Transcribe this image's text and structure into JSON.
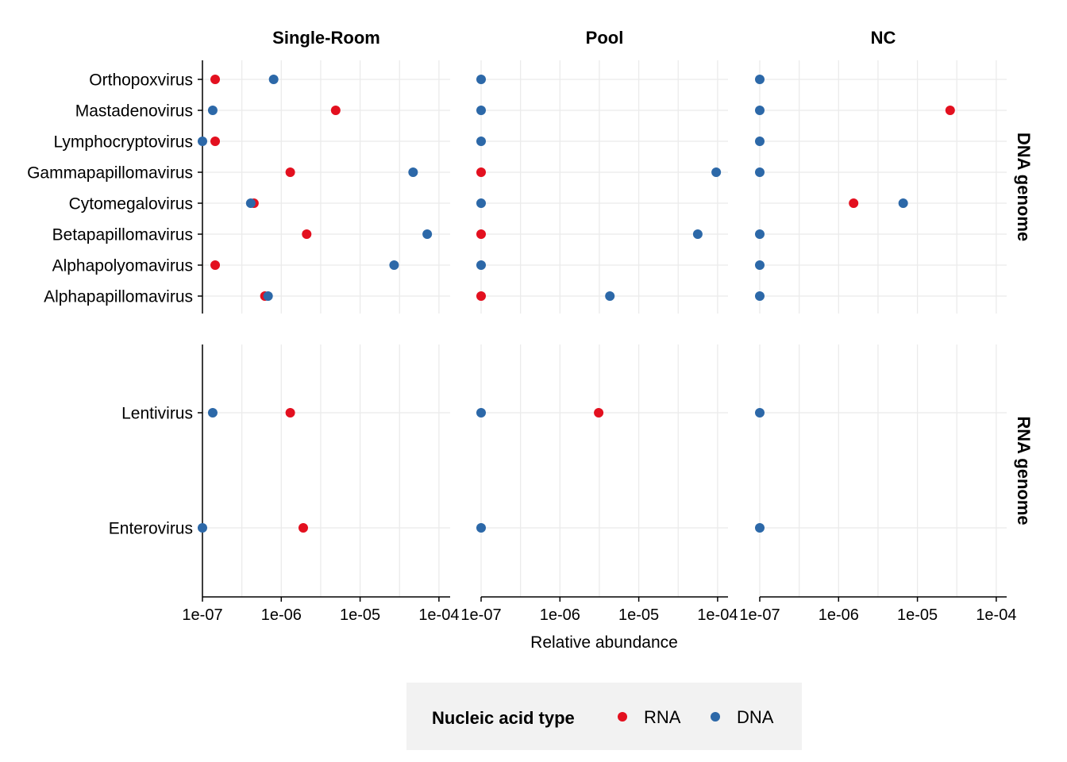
{
  "chart_data": {
    "type": "scatter",
    "x_scale": "log",
    "xlim": [
      1e-07,
      0.0001
    ],
    "x_ticks": [
      "1e-07",
      "1e-06",
      "1e-05",
      "1e-04"
    ],
    "xlabel": "Relative abundance",
    "ylabel": "",
    "grid": true,
    "column_facets": [
      "Single-Room",
      "Pool",
      "NC"
    ],
    "row_facets": [
      {
        "name": "DNA genome",
        "categories": [
          "Orthopoxvirus",
          "Mastadenovirus",
          "Lymphocryptovirus",
          "Gammapapillomavirus",
          "Cytomegalovirus",
          "Betapapillomavirus",
          "Alphapolyomavirus",
          "Alphapapillomavirus"
        ]
      },
      {
        "name": "RNA genome",
        "categories": [
          "Lentivirus",
          "Enterovirus"
        ]
      }
    ],
    "legend": {
      "title": "Nucleic acid type",
      "position": "bottom"
    },
    "series": [
      {
        "name": "RNA",
        "color": "#e3101f",
        "points": [
          {
            "facet": "Single-Room",
            "virus": "Orthopoxvirus",
            "x": 1.45e-07
          },
          {
            "facet": "Single-Room",
            "virus": "Mastadenovirus",
            "x": 4.9e-06
          },
          {
            "facet": "Single-Room",
            "virus": "Lymphocryptovirus",
            "x": 1.45e-07
          },
          {
            "facet": "Single-Room",
            "virus": "Gammapapillomavirus",
            "x": 1.3e-06
          },
          {
            "facet": "Single-Room",
            "virus": "Cytomegalovirus",
            "x": 4.5e-07
          },
          {
            "facet": "Single-Room",
            "virus": "Betapapillomavirus",
            "x": 2.1e-06
          },
          {
            "facet": "Single-Room",
            "virus": "Alphapolyomavirus",
            "x": 1.45e-07
          },
          {
            "facet": "Single-Room",
            "virus": "Alphapapillomavirus",
            "x": 6.2e-07
          },
          {
            "facet": "Single-Room",
            "virus": "Lentivirus",
            "x": 1.3e-06
          },
          {
            "facet": "Single-Room",
            "virus": "Enterovirus",
            "x": 1.9e-06
          },
          {
            "facet": "Pool",
            "virus": "Gammapapillomavirus",
            "x": 1e-07
          },
          {
            "facet": "Pool",
            "virus": "Betapapillomavirus",
            "x": 1e-07
          },
          {
            "facet": "Pool",
            "virus": "Alphapapillomavirus",
            "x": 1e-07
          },
          {
            "facet": "Pool",
            "virus": "Lentivirus",
            "x": 3.1e-06
          },
          {
            "facet": "NC",
            "virus": "Mastadenovirus",
            "x": 2.6e-05
          },
          {
            "facet": "NC",
            "virus": "Cytomegalovirus",
            "x": 1.55e-06
          }
        ]
      },
      {
        "name": "DNA",
        "color": "#2c68a8",
        "points": [
          {
            "facet": "Single-Room",
            "virus": "Orthopoxvirus",
            "x": 8e-07
          },
          {
            "facet": "Single-Room",
            "virus": "Mastadenovirus",
            "x": 1.35e-07
          },
          {
            "facet": "Single-Room",
            "virus": "Lymphocryptovirus",
            "x": 1e-07
          },
          {
            "facet": "Single-Room",
            "virus": "Gammapapillomavirus",
            "x": 4.7e-05
          },
          {
            "facet": "Single-Room",
            "virus": "Cytomegalovirus",
            "x": 4.1e-07
          },
          {
            "facet": "Single-Room",
            "virus": "Betapapillomavirus",
            "x": 7.1e-05
          },
          {
            "facet": "Single-Room",
            "virus": "Alphapolyomavirus",
            "x": 2.7e-05
          },
          {
            "facet": "Single-Room",
            "virus": "Alphapapillomavirus",
            "x": 6.8e-07
          },
          {
            "facet": "Single-Room",
            "virus": "Lentivirus",
            "x": 1.35e-07
          },
          {
            "facet": "Single-Room",
            "virus": "Enterovirus",
            "x": 1e-07
          },
          {
            "facet": "Pool",
            "virus": "Orthopoxvirus",
            "x": 1e-07
          },
          {
            "facet": "Pool",
            "virus": "Mastadenovirus",
            "x": 1e-07
          },
          {
            "facet": "Pool",
            "virus": "Lymphocryptovirus",
            "x": 1e-07
          },
          {
            "facet": "Pool",
            "virus": "Gammapapillomavirus",
            "x": 9.6e-05
          },
          {
            "facet": "Pool",
            "virus": "Cytomegalovirus",
            "x": 1e-07
          },
          {
            "facet": "Pool",
            "virus": "Betapapillomavirus",
            "x": 5.6e-05
          },
          {
            "facet": "Pool",
            "virus": "Alphapolyomavirus",
            "x": 1e-07
          },
          {
            "facet": "Pool",
            "virus": "Alphapapillomavirus",
            "x": 4.3e-06
          },
          {
            "facet": "Pool",
            "virus": "Lentivirus",
            "x": 1e-07
          },
          {
            "facet": "Pool",
            "virus": "Enterovirus",
            "x": 1e-07
          },
          {
            "facet": "NC",
            "virus": "Orthopoxvirus",
            "x": 1e-07
          },
          {
            "facet": "NC",
            "virus": "Mastadenovirus",
            "x": 1e-07
          },
          {
            "facet": "NC",
            "virus": "Lymphocryptovirus",
            "x": 1e-07
          },
          {
            "facet": "NC",
            "virus": "Gammapapillomavirus",
            "x": 1e-07
          },
          {
            "facet": "NC",
            "virus": "Cytomegalovirus",
            "x": 6.6e-06
          },
          {
            "facet": "NC",
            "virus": "Betapapillomavirus",
            "x": 1e-07
          },
          {
            "facet": "NC",
            "virus": "Alphapolyomavirus",
            "x": 1e-07
          },
          {
            "facet": "NC",
            "virus": "Alphapapillomavirus",
            "x": 1e-07
          },
          {
            "facet": "NC",
            "virus": "Lentivirus",
            "x": 1e-07
          },
          {
            "facet": "NC",
            "virus": "Enterovirus",
            "x": 1e-07
          }
        ]
      }
    ]
  }
}
